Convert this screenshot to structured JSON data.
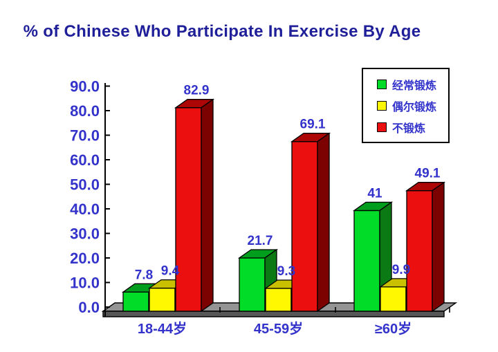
{
  "title": "% of Chinese Who Participate In Exercise By Age",
  "colors": {
    "background": "#ffffff",
    "title_text": "#1f1f99",
    "label_text": "#3333cc",
    "axis": "#000000",
    "floor_top": "#949494",
    "floor_front": "#575757",
    "legend_border": "#000000",
    "legend_bg": "#ffffff"
  },
  "chart_data": {
    "type": "bar",
    "style": "3d-column",
    "title": "% of Chinese Who Participate In Exercise By Age",
    "categories": [
      "18-44岁",
      "45-59岁",
      "≥60岁"
    ],
    "series": [
      {
        "name": "经常锻炼",
        "values": [
          7.8,
          21.7,
          41
        ],
        "labels": [
          "7.8",
          "21.7",
          "41"
        ],
        "color_front": "#00dc28",
        "color_top": "#009e1c",
        "color_side": "#0c7a14"
      },
      {
        "name": "偶尔锻炼",
        "values": [
          9.4,
          9.3,
          9.9
        ],
        "labels": [
          "9.4",
          "9.3",
          "9.9"
        ],
        "color_front": "#fff800",
        "color_top": "#c8c000",
        "color_side": "#918a00"
      },
      {
        "name": "不锻炼",
        "values": [
          82.9,
          69.1,
          49.1
        ],
        "labels": [
          "82.9",
          "69.1",
          "49.1"
        ],
        "color_front": "#ec0f0f",
        "color_top": "#ad0606",
        "color_side": "#7c0101"
      }
    ],
    "y_axis": {
      "min": 0,
      "max": 90,
      "step": 10,
      "tick_labels": [
        "0.0",
        "10.0",
        "20.0",
        "30.0",
        "40.0",
        "50.0",
        "60.0",
        "70.0",
        "80.0",
        "90.0"
      ]
    },
    "legend": {
      "position": "top-right",
      "entries": [
        "经常锻炼",
        "偶尔锻炼",
        "不锻炼"
      ]
    },
    "grid": false,
    "background_wall": "none"
  }
}
